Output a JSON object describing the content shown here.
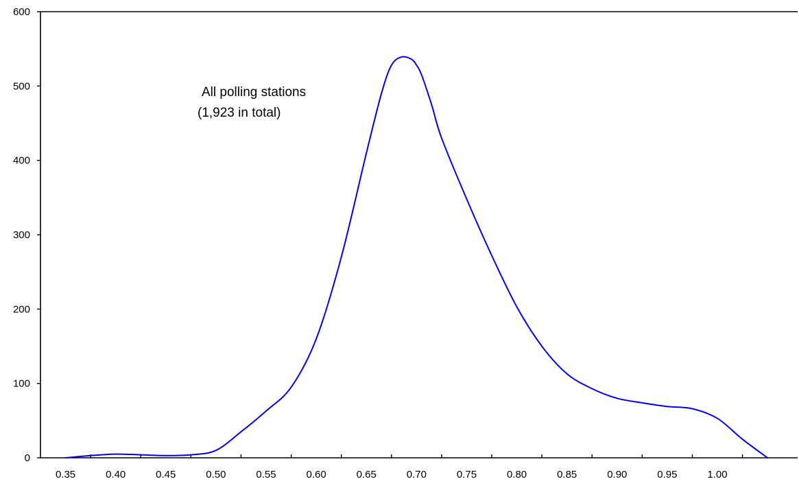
{
  "chart_data": {
    "type": "line",
    "title": "",
    "xlabel": "",
    "ylabel": "",
    "xlim": [
      0.325,
      1.08
    ],
    "ylim": [
      0,
      600
    ],
    "grid": false,
    "x_ticks": [
      0.35,
      0.4,
      0.45,
      0.5,
      0.55,
      0.6,
      0.65,
      0.7,
      0.75,
      0.8,
      0.85,
      0.9,
      0.95,
      1.0
    ],
    "x_tick_labels": [
      "0.35",
      "0.40",
      "0.45",
      "0.50",
      "0.55",
      "0.60",
      "0.65",
      "0.70",
      "0.75",
      "0.80",
      "0.85",
      "0.90",
      "0.95",
      "1.00"
    ],
    "y_ticks": [
      0,
      100,
      200,
      300,
      400,
      500,
      600
    ],
    "y_tick_labels": [
      "0",
      "100",
      "200",
      "300",
      "400",
      "500",
      "600"
    ],
    "annotation": {
      "line1": "All polling stations",
      "line2": "(1,923 in total)"
    },
    "series": [
      {
        "color": "#0000ee",
        "x": [
          0.35,
          0.375,
          0.4,
          0.425,
          0.45,
          0.475,
          0.5,
          0.525,
          0.55,
          0.575,
          0.6,
          0.625,
          0.65,
          0.665,
          0.675,
          0.685,
          0.695,
          0.7,
          0.705,
          0.715,
          0.725,
          0.75,
          0.775,
          0.8,
          0.825,
          0.85,
          0.875,
          0.9,
          0.925,
          0.95,
          0.975,
          1.0,
          1.025,
          1.05
        ],
        "y": [
          0,
          3,
          5,
          4,
          3,
          4,
          10,
          35,
          63,
          95,
          160,
          270,
          410,
          490,
          528,
          539,
          536,
          528,
          515,
          475,
          430,
          348,
          272,
          203,
          150,
          113,
          93,
          80,
          74,
          69,
          66,
          53,
          25,
          0
        ]
      }
    ]
  }
}
